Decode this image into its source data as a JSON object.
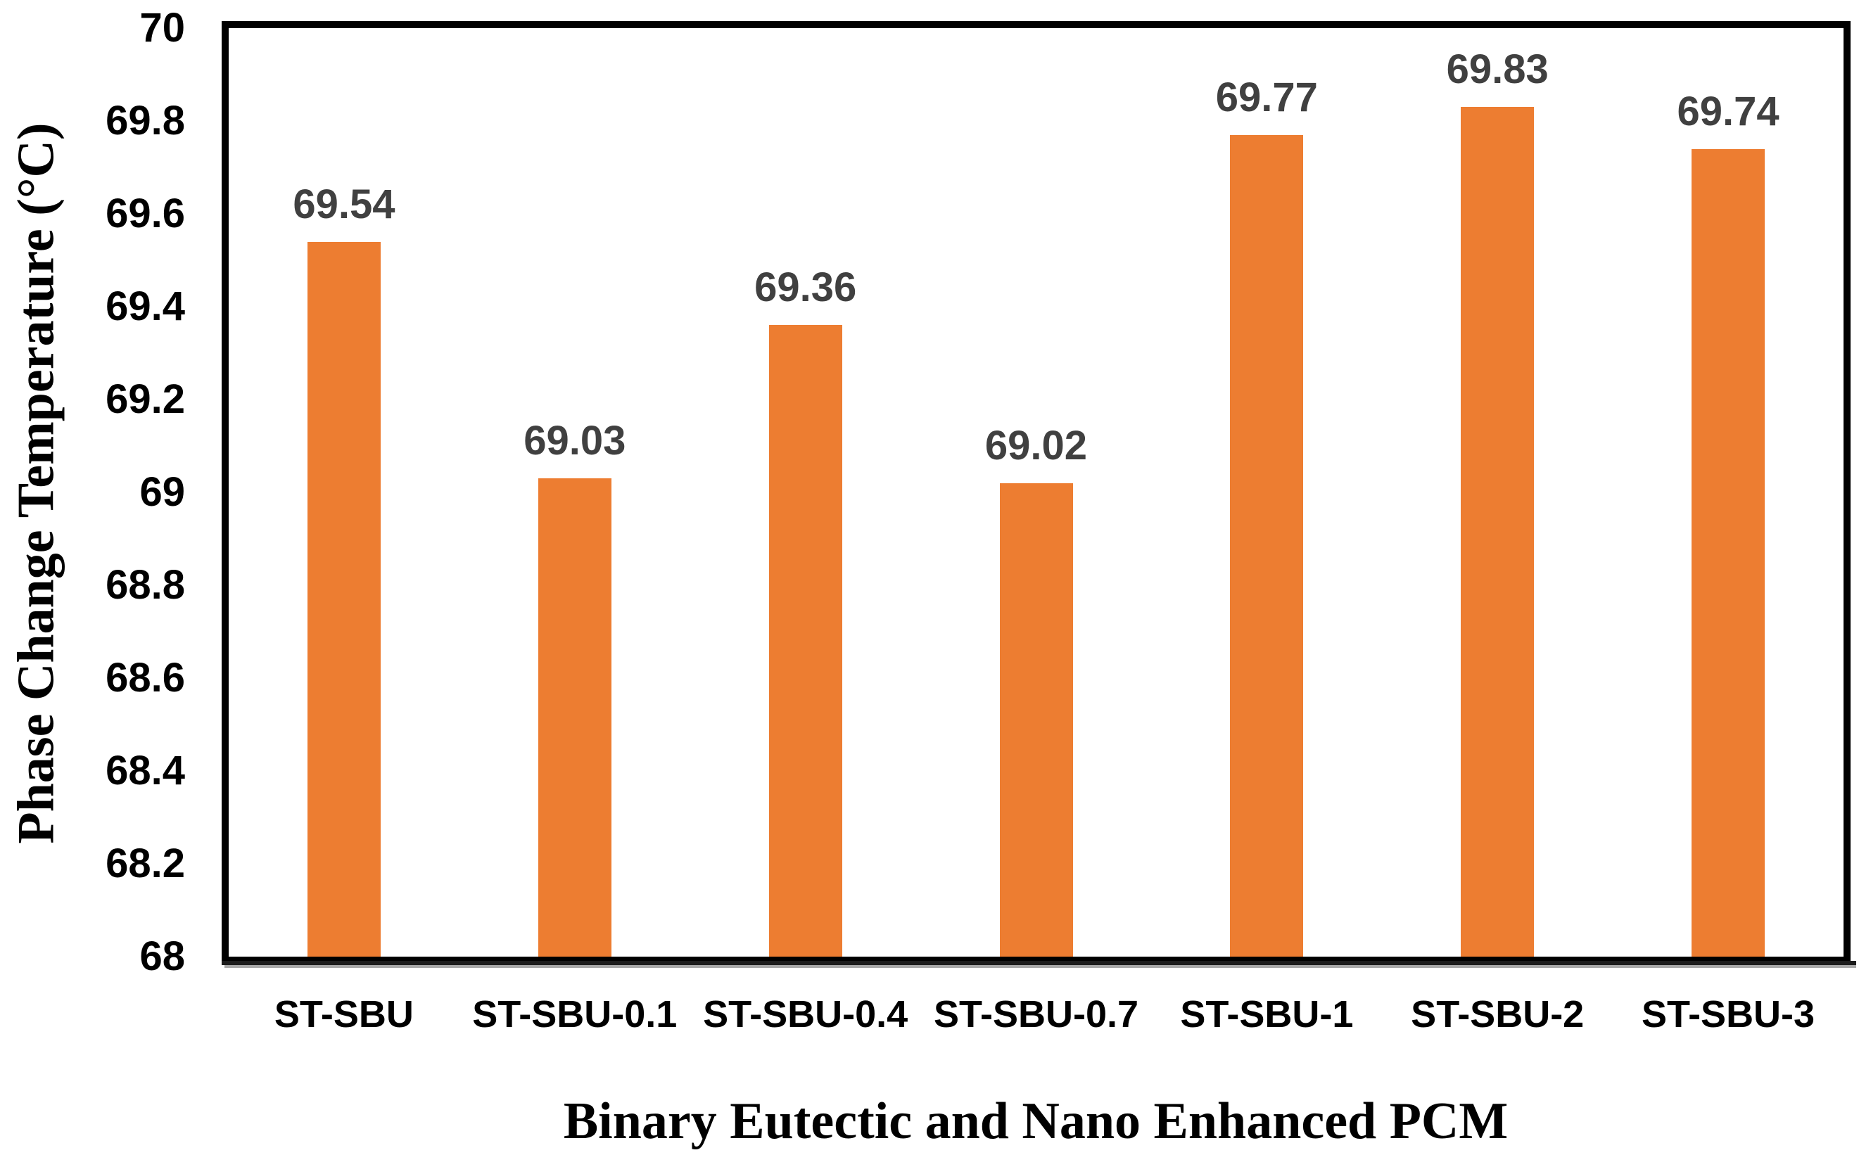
{
  "chart_data": {
    "type": "bar",
    "title": "",
    "categories": [
      "ST-SBU",
      "ST-SBU-0.1",
      "ST-SBU-0.4",
      "ST-SBU-0.7",
      "ST-SBU-1",
      "ST-SBU-2",
      "ST-SBU-3"
    ],
    "values": [
      69.54,
      69.03,
      69.36,
      69.02,
      69.77,
      69.83,
      69.74
    ],
    "data_labels": [
      "69.54",
      "69.03",
      "69.36",
      "69.02",
      "69.77",
      "69.83",
      "69.74"
    ],
    "xlabel": "Binary Eutectic and Nano Enhanced PCM",
    "ylabel": "Phase Change Temperature (°C)",
    "ylim": [
      68,
      70
    ],
    "yticks": [
      {
        "value": 70,
        "label": "70"
      },
      {
        "value": 69.8,
        "label": "69.8"
      },
      {
        "value": 69.6,
        "label": "69.6"
      },
      {
        "value": 69.4,
        "label": "69.4"
      },
      {
        "value": 69.2,
        "label": "69.2"
      },
      {
        "value": 69,
        "label": "69"
      },
      {
        "value": 68.8,
        "label": "68.8"
      },
      {
        "value": 68.6,
        "label": "68.6"
      },
      {
        "value": 68.4,
        "label": "68.4"
      },
      {
        "value": 68.2,
        "label": "68.2"
      },
      {
        "value": 68,
        "label": "68"
      }
    ],
    "grid": false,
    "legend": "none",
    "bar_color": "#ED7D31",
    "data_label_color": "#404040",
    "axis_text_color": "#000000",
    "plot_border_color": "#000000"
  }
}
